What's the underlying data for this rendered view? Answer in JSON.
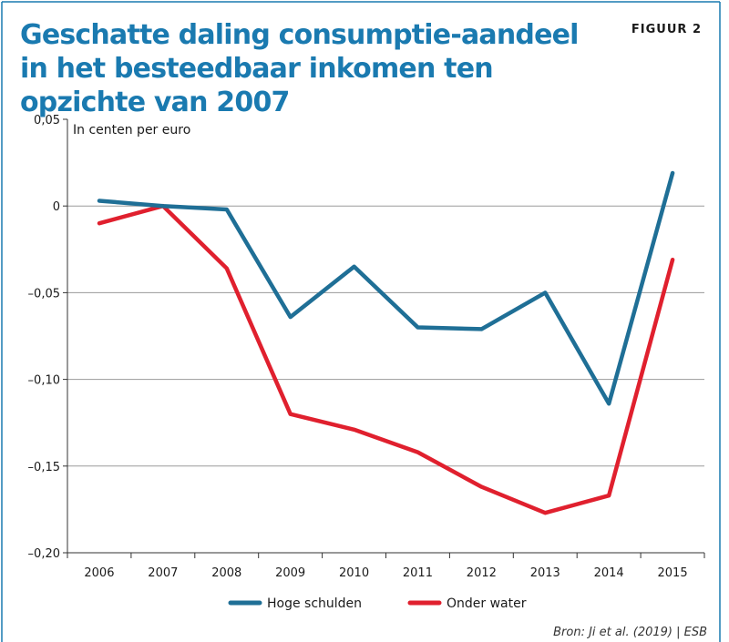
{
  "header": {
    "title": "Geschatte daling consumptie-aandeel in het besteedbaar inkomen ten opzichte van 2007",
    "figure_label": "FIGUUR 2"
  },
  "colors": {
    "title": "#1a7ab0",
    "frame": "#1a7ab0",
    "series_1": "#1f6f96",
    "series_2": "#e0202e",
    "grid": "#9a9a9a"
  },
  "chart_data": {
    "type": "line",
    "title": "Geschatte daling consumptie-aandeel in het besteedbaar inkomen ten opzichte van 2007",
    "ylabel": "In centen per euro",
    "xlabel": "",
    "x": [
      "2006",
      "2007",
      "2008",
      "2009",
      "2010",
      "2011",
      "2012",
      "2013",
      "2014",
      "2015"
    ],
    "ylim": [
      -0.2,
      0.05
    ],
    "yticks": [
      0.05,
      0,
      -0.05,
      -0.1,
      -0.15,
      -0.2
    ],
    "ytick_labels": [
      "0,05",
      "0",
      "–0,05",
      "–0,10",
      "–0,15",
      "–0,20"
    ],
    "grid": true,
    "legend_position": "bottom",
    "series": [
      {
        "name": "Hoge schulden",
        "color": "#1f6f96",
        "values": [
          0.003,
          0.0,
          -0.002,
          -0.064,
          -0.035,
          -0.07,
          -0.071,
          -0.05,
          -0.114,
          0.019
        ]
      },
      {
        "name": "Onder water",
        "color": "#e0202e",
        "values": [
          -0.01,
          0.0,
          -0.036,
          -0.12,
          -0.129,
          -0.142,
          -0.162,
          -0.177,
          -0.167,
          -0.031
        ]
      }
    ],
    "source": "Bron: Ji et al. (2019) | ESB"
  }
}
